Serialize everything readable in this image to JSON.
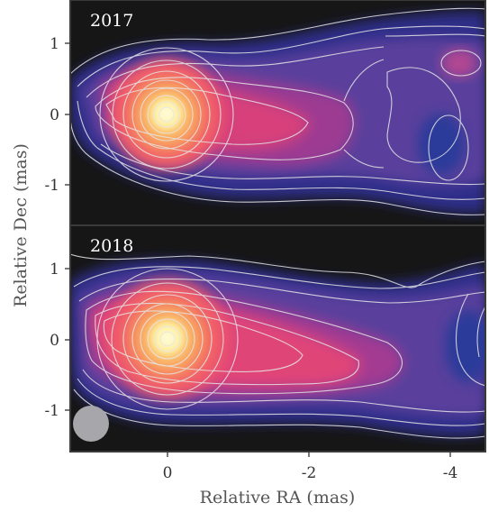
{
  "figure": {
    "x_label": "Relative RA (mas)",
    "y_label": "Relative Dec (mas)",
    "colors": {
      "background": "#161616",
      "frame": "#3a3a3a",
      "contour": "#e6e6e6",
      "beam": "#a7a7ab",
      "jet_low": "#2a2c86",
      "jet_mid": "#a63a96",
      "jet_high": "#f0486a",
      "core": "#fff6a8"
    },
    "panels": [
      {
        "id": "2017",
        "label": "2017",
        "x_ticks": [],
        "y_ticks": [
          "1",
          "0",
          "-1"
        ],
        "beam": false
      },
      {
        "id": "2018",
        "label": "2018",
        "x_ticks": [
          "0",
          "-2",
          "-4"
        ],
        "y_ticks": [
          "1",
          "0",
          "-1"
        ],
        "beam": true
      }
    ]
  }
}
